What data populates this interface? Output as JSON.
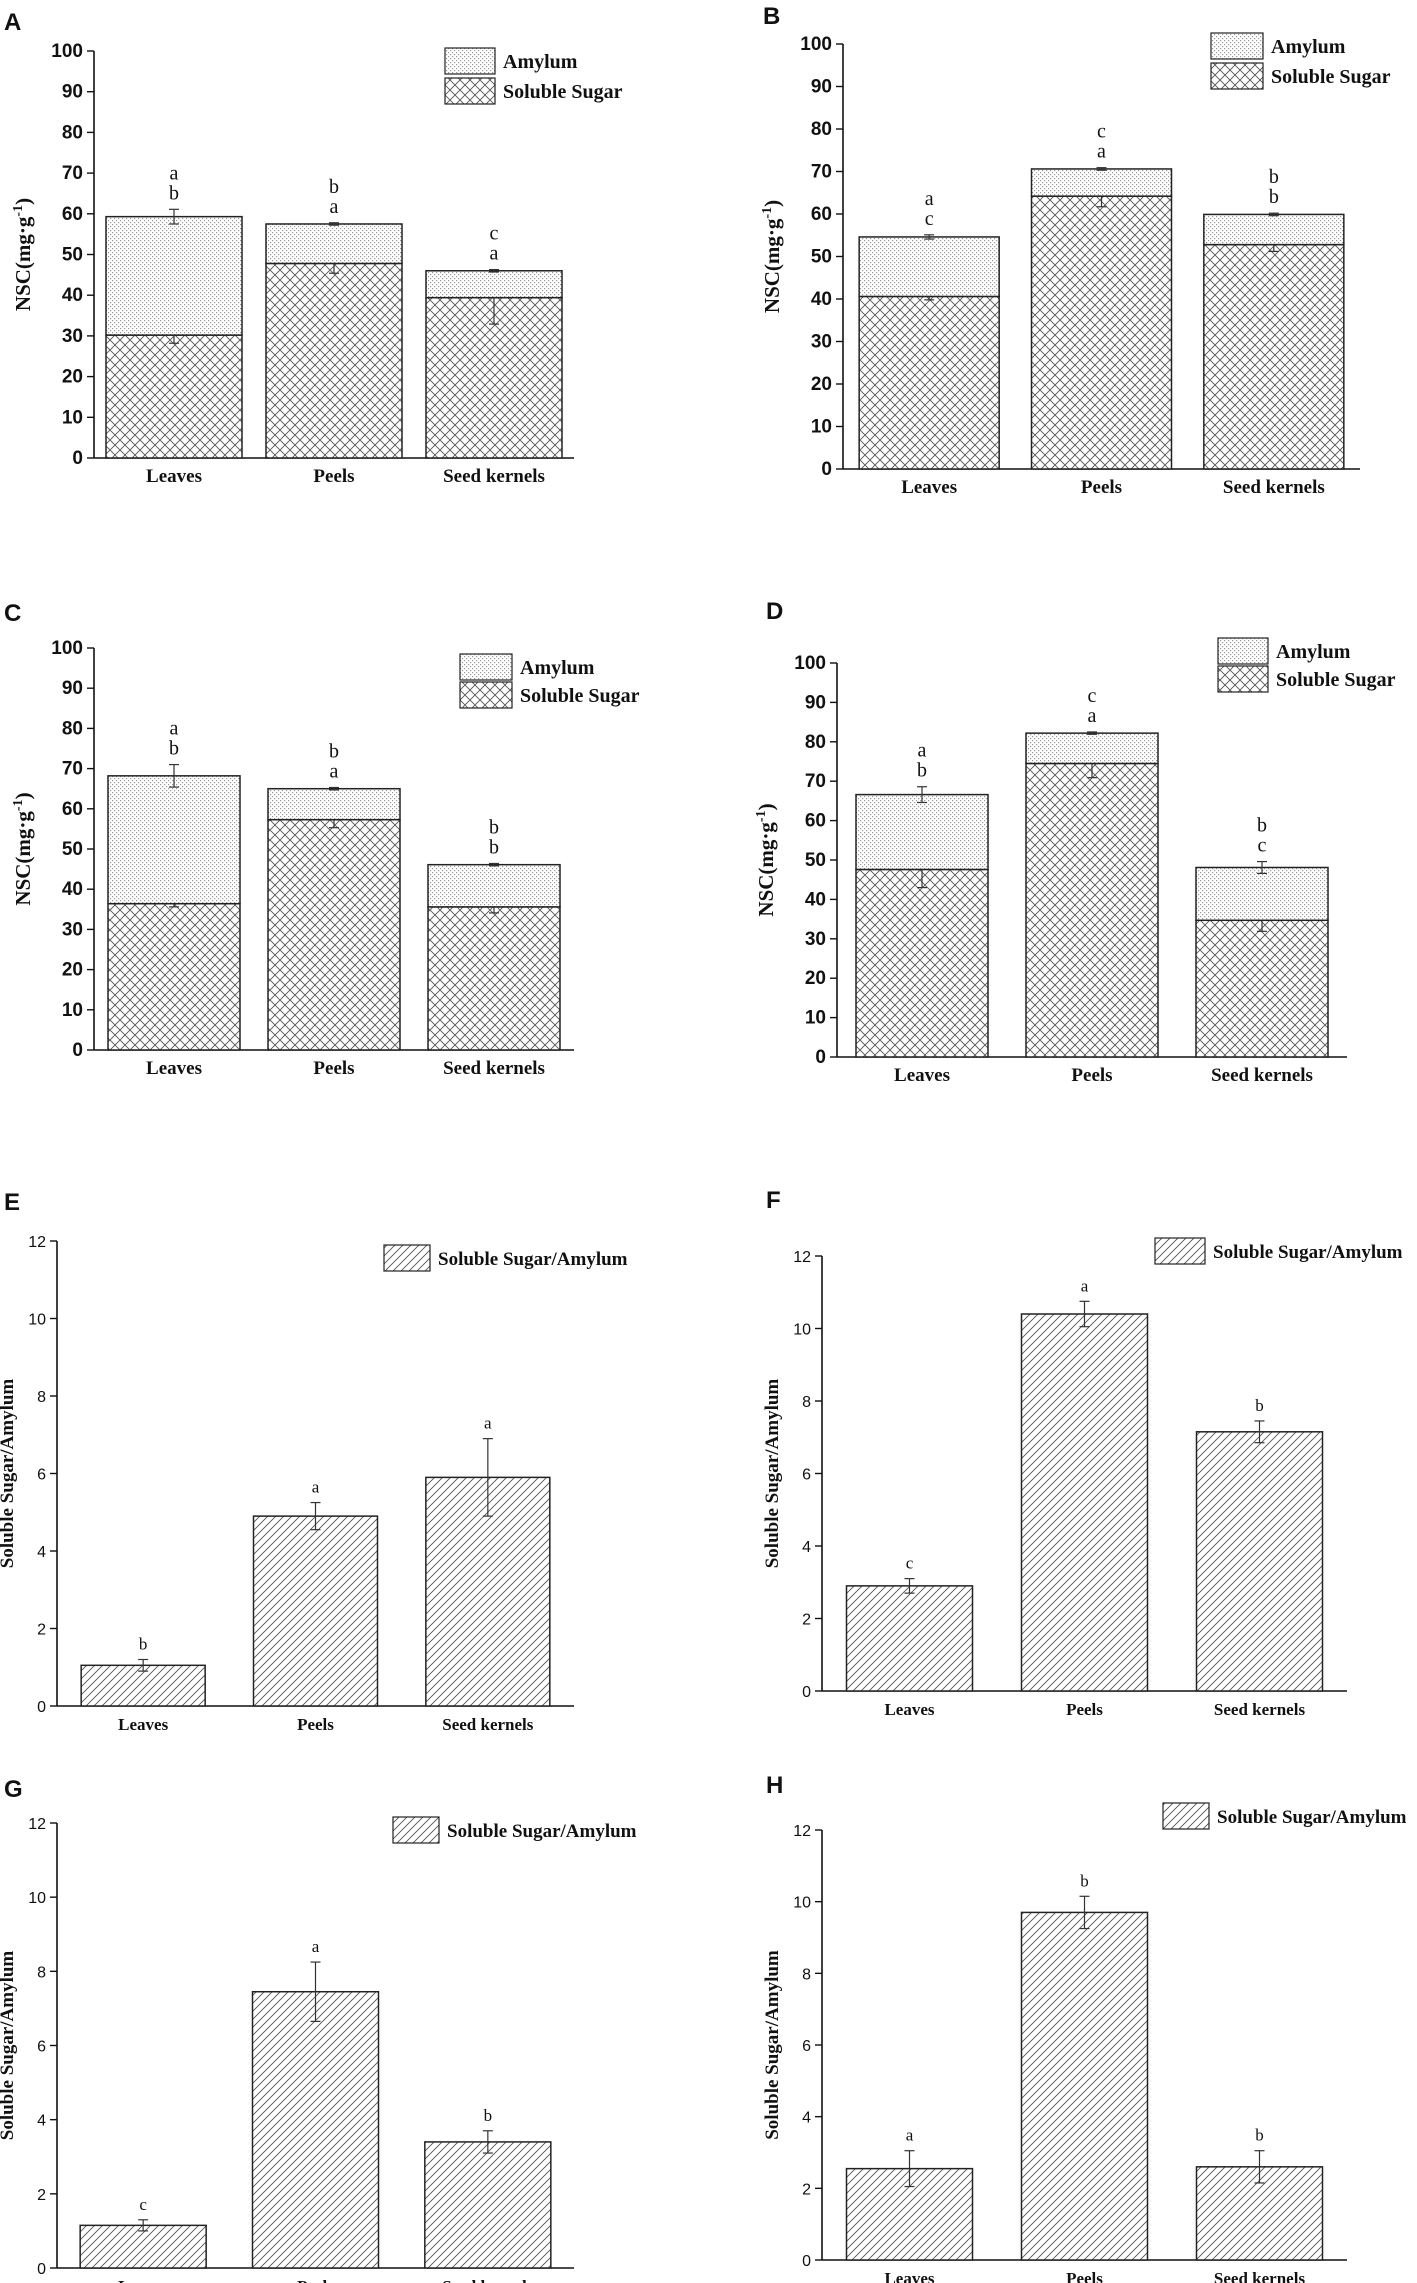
{
  "figure": {
    "panels": [
      "A",
      "B",
      "C",
      "D",
      "E",
      "F",
      "G",
      "H"
    ]
  },
  "chart_data": [
    {
      "panel": "A",
      "type": "bar",
      "stacked": true,
      "categories": [
        "Leaves",
        "Peels",
        "Seed kernels"
      ],
      "series": [
        {
          "name": "Soluble Sugar",
          "values": [
            30.2,
            47.8,
            39.4
          ],
          "errors": [
            2.0,
            2.4,
            6.5
          ],
          "letters": [
            "b",
            "a",
            "a"
          ]
        },
        {
          "name": "Amylum",
          "values": [
            29.1,
            9.7,
            6.6
          ],
          "errors": [
            1.8,
            0.3,
            0.3
          ],
          "letters": [
            "a",
            "b",
            "c"
          ]
        }
      ],
      "legend": [
        "Amylum",
        "Soluble Sugar"
      ],
      "ylabel": "NSC(mg·g",
      "ylabel_sup": "-1",
      "ylabel_close": ")",
      "ylim": [
        0,
        100
      ],
      "yticks": [
        0,
        10,
        20,
        30,
        40,
        50,
        60,
        70,
        80,
        90,
        100
      ]
    },
    {
      "panel": "B",
      "type": "bar",
      "stacked": true,
      "categories": [
        "Leaves",
        "Peels",
        "Seed kernels"
      ],
      "series": [
        {
          "name": "Soluble Sugar",
          "values": [
            40.6,
            64.2,
            52.8
          ],
          "errors": [
            0.8,
            2.5,
            1.6
          ],
          "letters": [
            "c",
            "a",
            "b"
          ]
        },
        {
          "name": "Amylum",
          "values": [
            14.0,
            6.4,
            7.1
          ],
          "errors": [
            0.5,
            0.3,
            0.3
          ],
          "letters": [
            "a",
            "c",
            "b"
          ]
        }
      ],
      "legend": [
        "Amylum",
        "Soluble Sugar"
      ],
      "ylabel": "NSC(mg·g",
      "ylabel_sup": "-1",
      "ylabel_close": ")",
      "ylim": [
        0,
        100
      ],
      "yticks": [
        0,
        10,
        20,
        30,
        40,
        50,
        60,
        70,
        80,
        90,
        100
      ]
    },
    {
      "panel": "C",
      "type": "bar",
      "stacked": true,
      "categories": [
        "Leaves",
        "Peels",
        "Seed kernels"
      ],
      "series": [
        {
          "name": "Soluble Sugar",
          "values": [
            36.4,
            57.3,
            35.6
          ],
          "errors": [
            0.8,
            2.0,
            1.5
          ],
          "letters": [
            "b",
            "a",
            "b"
          ]
        },
        {
          "name": "Amylum",
          "values": [
            31.8,
            7.7,
            10.5
          ],
          "errors": [
            2.8,
            0.3,
            0.3
          ],
          "letters": [
            "a",
            "b",
            "b"
          ]
        }
      ],
      "legend": [
        "Amylum",
        "Soluble Sugar"
      ],
      "ylabel": "NSC(mg·g",
      "ylabel_sup": "-1",
      "ylabel_close": ")",
      "ylim": [
        0,
        100
      ],
      "yticks": [
        0,
        10,
        20,
        30,
        40,
        50,
        60,
        70,
        80,
        90,
        100
      ]
    },
    {
      "panel": "D",
      "type": "bar",
      "stacked": true,
      "categories": [
        "Leaves",
        "Peels",
        "Seed kernels"
      ],
      "series": [
        {
          "name": "Soluble Sugar",
          "values": [
            47.6,
            74.5,
            34.7
          ],
          "errors": [
            4.6,
            3.6,
            2.8
          ],
          "letters": [
            "b",
            "a",
            "c"
          ]
        },
        {
          "name": "Amylum",
          "values": [
            19.0,
            7.7,
            13.4
          ],
          "errors": [
            2.0,
            0.3,
            1.5
          ],
          "letters": [
            "a",
            "c",
            "b"
          ]
        }
      ],
      "legend": [
        "Amylum",
        "Soluble Sugar"
      ],
      "ylabel": "NSC(mg·g",
      "ylabel_sup": "-1",
      "ylabel_close": ")",
      "ylim": [
        0,
        100
      ],
      "yticks": [
        0,
        10,
        20,
        30,
        40,
        50,
        60,
        70,
        80,
        90,
        100
      ]
    },
    {
      "panel": "E",
      "type": "bar",
      "stacked": false,
      "categories": [
        "Leaves",
        "Peels",
        "Seed kernels"
      ],
      "series": [
        {
          "name": "Soluble Sugar/Amylum",
          "values": [
            1.05,
            4.9,
            5.9
          ],
          "errors": [
            0.15,
            0.35,
            1.0
          ],
          "letters": [
            "b",
            "a",
            "a"
          ]
        }
      ],
      "legend": [
        "Soluble Sugar/Amylum"
      ],
      "ylabel": "Soluble Sugar/Amylum",
      "ylim": [
        0,
        12
      ],
      "yticks": [
        0,
        2,
        4,
        6,
        8,
        10,
        12
      ]
    },
    {
      "panel": "F",
      "type": "bar",
      "stacked": false,
      "categories": [
        "Leaves",
        "Peels",
        "Seed kernels"
      ],
      "series": [
        {
          "name": "Soluble Sugar/Amylum",
          "values": [
            2.9,
            10.4,
            7.15
          ],
          "errors": [
            0.2,
            0.35,
            0.3
          ],
          "letters": [
            "c",
            "a",
            "b"
          ]
        }
      ],
      "legend": [
        "Soluble Sugar/Amylum"
      ],
      "ylabel": "Soluble Sugar/Amylum",
      "ylim": [
        0,
        12
      ],
      "yticks": [
        0,
        2,
        4,
        6,
        8,
        10,
        12
      ]
    },
    {
      "panel": "G",
      "type": "bar",
      "stacked": false,
      "categories": [
        "Leaves",
        "Peels",
        "Seed kernels"
      ],
      "series": [
        {
          "name": "Soluble Sugar/Amylum",
          "values": [
            1.15,
            7.45,
            3.4
          ],
          "errors": [
            0.15,
            0.8,
            0.3
          ],
          "letters": [
            "c",
            "a",
            "b"
          ]
        }
      ],
      "legend": [
        "Soluble Sugar/Amylum"
      ],
      "ylabel": "Soluble Sugar/Amylum",
      "ylim": [
        0,
        12
      ],
      "yticks": [
        0,
        2,
        4,
        6,
        8,
        10,
        12
      ]
    },
    {
      "panel": "H",
      "type": "bar",
      "stacked": false,
      "categories": [
        "Leaves",
        "Peels",
        "Seed kernels"
      ],
      "series": [
        {
          "name": "Soluble Sugar/Amylum",
          "values": [
            2.55,
            9.7,
            2.6
          ],
          "errors": [
            0.5,
            0.45,
            0.45
          ],
          "letters": [
            "a",
            "b",
            "b"
          ]
        }
      ],
      "legend": [
        "Soluble Sugar/Amylum"
      ],
      "ylabel": "Soluble Sugar/Amylum",
      "ylim": [
        0,
        12
      ],
      "yticks": [
        0,
        2,
        4,
        6,
        8,
        10,
        12
      ]
    }
  ]
}
